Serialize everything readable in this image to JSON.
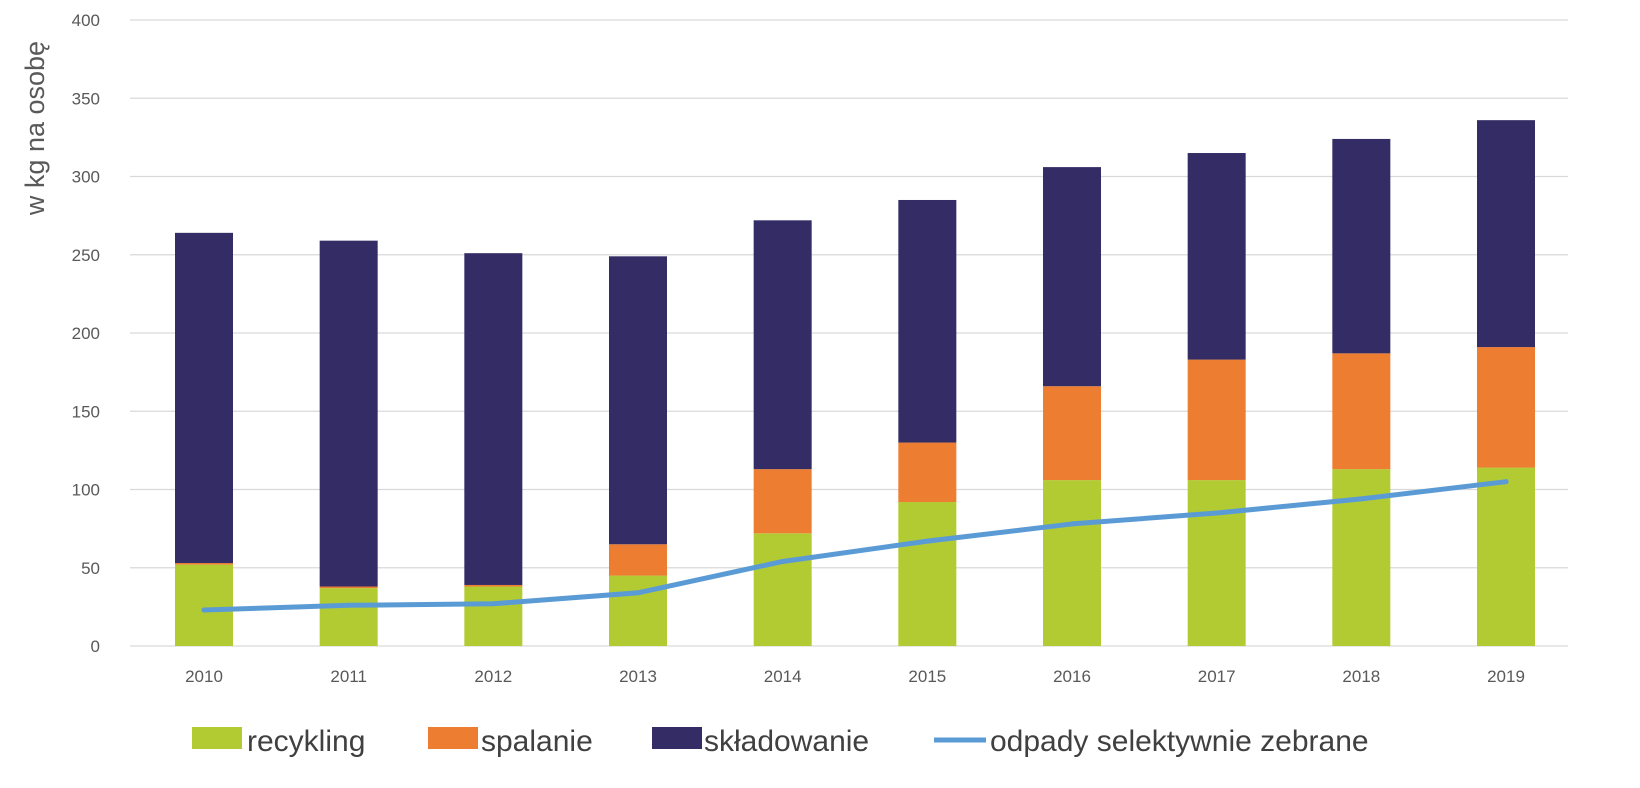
{
  "chart_data": {
    "type": "bar",
    "stacked": true,
    "categories": [
      "2010",
      "2011",
      "2012",
      "2013",
      "2014",
      "2015",
      "2016",
      "2017",
      "2018",
      "2019"
    ],
    "series": [
      {
        "name": "recykling",
        "kind": "bar",
        "color": "#b2cb33",
        "values": [
          52,
          37,
          38,
          45,
          72,
          92,
          106,
          106,
          113,
          114
        ]
      },
      {
        "name": "spalanie",
        "kind": "bar",
        "color": "#ed7d31",
        "values": [
          1,
          1,
          1,
          20,
          41,
          38,
          60,
          77,
          74,
          77
        ]
      },
      {
        "name": "składowanie",
        "kind": "bar",
        "color": "#342c64",
        "values": [
          211,
          221,
          212,
          184,
          159,
          155,
          140,
          132,
          137,
          145
        ]
      },
      {
        "name": "odpady selektywnie zebrane",
        "kind": "line",
        "color": "#5b9bd5",
        "values": [
          23,
          26,
          27,
          34,
          54,
          67,
          78,
          85,
          94,
          105
        ]
      }
    ],
    "title": "",
    "xlabel": "",
    "ylabel": "w kg na osobę",
    "ylim": [
      0,
      400
    ],
    "yticks": [
      "0",
      "50",
      "100",
      "150",
      "200",
      "250",
      "300",
      "350",
      "400"
    ],
    "grid": true,
    "legend_position": "bottom"
  }
}
